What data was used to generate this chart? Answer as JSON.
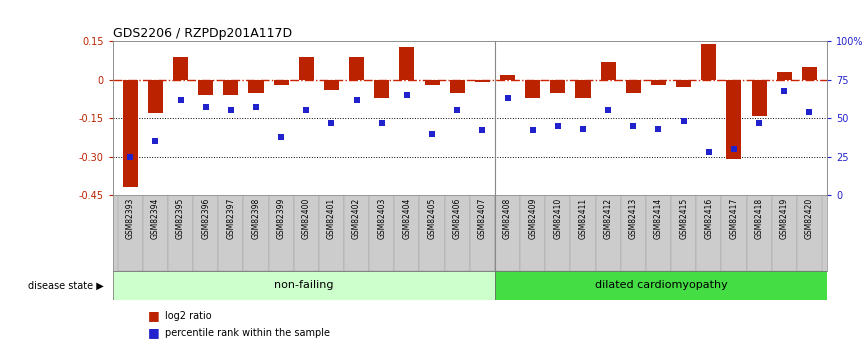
{
  "title": "GDS2206 / RZPDp201A117D",
  "samples": [
    "GSM82393",
    "GSM82394",
    "GSM82395",
    "GSM82396",
    "GSM82397",
    "GSM82398",
    "GSM82399",
    "GSM82400",
    "GSM82401",
    "GSM82402",
    "GSM82403",
    "GSM82404",
    "GSM82405",
    "GSM82406",
    "GSM82407",
    "GSM82408",
    "GSM82409",
    "GSM82410",
    "GSM82411",
    "GSM82412",
    "GSM82413",
    "GSM82414",
    "GSM82415",
    "GSM82416",
    "GSM82417",
    "GSM82418",
    "GSM82419",
    "GSM82420"
  ],
  "log2_ratio": [
    -0.42,
    -0.13,
    0.09,
    -0.06,
    -0.06,
    -0.05,
    -0.02,
    0.09,
    -0.04,
    0.09,
    -0.07,
    0.13,
    -0.02,
    -0.05,
    -0.01,
    0.02,
    -0.07,
    -0.05,
    -0.07,
    0.07,
    -0.05,
    -0.02,
    -0.03,
    0.14,
    -0.31,
    -0.14,
    0.03,
    0.05
  ],
  "percentile": [
    25,
    35,
    62,
    57,
    55,
    57,
    38,
    55,
    47,
    62,
    47,
    65,
    40,
    55,
    42,
    63,
    42,
    45,
    43,
    55,
    45,
    43,
    48,
    28,
    30,
    47,
    68,
    54
  ],
  "non_failing_count": 15,
  "ylim_left": [
    -0.45,
    0.15
  ],
  "ylim_right": [
    0,
    100
  ],
  "yticks_left": [
    0.15,
    0.0,
    -0.15,
    -0.3,
    -0.45
  ],
  "yticks_right": [
    100,
    75,
    50,
    25,
    0
  ],
  "ytick_labels_left": [
    "0.15",
    "0",
    "-0.15",
    "-0.30",
    "-0.45"
  ],
  "ytick_labels_right": [
    "100%",
    "75",
    "50",
    "25",
    "0"
  ],
  "bar_color": "#bb2200",
  "dot_color": "#2222cc",
  "nonfailing_color": "#ccffcc",
  "dilated_color": "#44dd44",
  "label_nonfailing": "non-failing",
  "label_dilated": "dilated cardiomyopathy",
  "disease_state_label": "disease state",
  "legend_bar": "log2 ratio",
  "legend_dot": "percentile rank within the sample",
  "hline_color": "#cc2200",
  "dotted_line_color": "black",
  "background_color": "#ffffff",
  "xticklabel_bg": "#cccccc",
  "sep_line_color": "#888888"
}
